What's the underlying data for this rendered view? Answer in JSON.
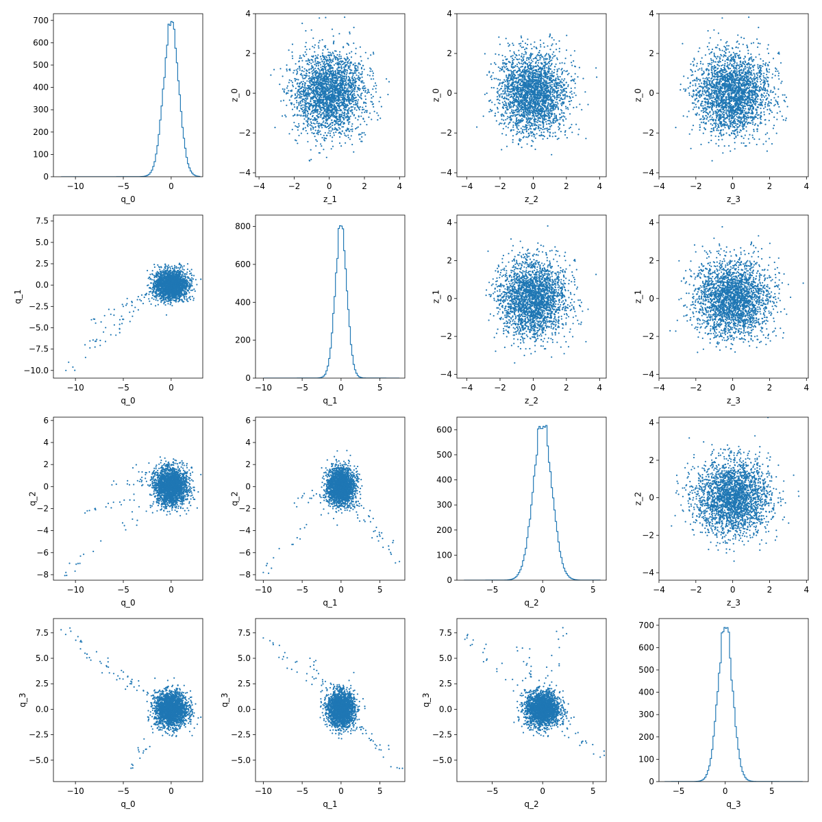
{
  "figure": {
    "type": "corner-pairplot",
    "point_color": "#1f77b4",
    "hist_color": "#1f77b4",
    "background": "#ffffff"
  },
  "chart_data": [
    {
      "type": "histogram",
      "row": 0,
      "col": 0,
      "xlabel": "q_0",
      "ylabel": "",
      "xlim": [
        -12.3,
        3.3
      ],
      "ylim": [
        0,
        730
      ],
      "xticks": [
        -10,
        -5,
        0
      ],
      "yticks": [
        0,
        100,
        200,
        300,
        400,
        500,
        600,
        700
      ],
      "distribution": {
        "center": 0,
        "spread": 0.8,
        "peak": 695,
        "tail_left": -11.5,
        "tail_right": 3
      }
    },
    {
      "type": "scatter",
      "row": 0,
      "col": 1,
      "xlabel": "z_1",
      "ylabel": "z_0",
      "xlim": [
        -4.2,
        4.3
      ],
      "ylim": [
        -4.2,
        4.0
      ],
      "xticks": [
        -4,
        -2,
        0,
        2,
        4
      ],
      "yticks": [
        -4,
        -2,
        0,
        2,
        4
      ],
      "distribution": {
        "shape": "gaussian",
        "sx": 1,
        "sy": 1,
        "n": 2600
      }
    },
    {
      "type": "scatter",
      "row": 0,
      "col": 2,
      "xlabel": "z_2",
      "ylabel": "z_0",
      "xlim": [
        -4.6,
        4.4
      ],
      "ylim": [
        -4.2,
        4.0
      ],
      "xticks": [
        -4,
        -2,
        0,
        2,
        4
      ],
      "yticks": [
        -4,
        -2,
        0,
        2,
        4
      ],
      "distribution": {
        "shape": "gaussian",
        "sx": 1,
        "sy": 1,
        "n": 2600
      }
    },
    {
      "type": "scatter",
      "row": 0,
      "col": 3,
      "xlabel": "z_3",
      "ylabel": "z_0",
      "xlim": [
        -4.0,
        4.1
      ],
      "ylim": [
        -4.2,
        4.0
      ],
      "xticks": [
        -4,
        -2,
        0,
        2,
        4
      ],
      "yticks": [
        -4,
        -2,
        0,
        2,
        4
      ],
      "distribution": {
        "shape": "gaussian",
        "sx": 1,
        "sy": 1,
        "n": 2600
      }
    },
    {
      "type": "scatter",
      "row": 1,
      "col": 0,
      "xlabel": "q_0",
      "ylabel": "q_1",
      "xlim": [
        -12.3,
        3.3
      ],
      "ylim": [
        -10.9,
        8.2
      ],
      "xticks": [
        -10,
        -5,
        0
      ],
      "yticks": [
        -10.0,
        -7.5,
        -5.0,
        -2.5,
        0.0,
        2.5,
        5.0,
        7.5
      ],
      "distribution": {
        "shape": "heavy-tail",
        "sx": 0.9,
        "sy": 0.9,
        "n": 2200,
        "tail": [
          [
            -11,
            -10
          ],
          [
            -9,
            -7
          ],
          [
            -8,
            -4
          ],
          [
            -5,
            -2.5
          ]
        ]
      }
    },
    {
      "type": "histogram",
      "row": 1,
      "col": 1,
      "xlabel": "q_1",
      "ylabel": "",
      "xlim": [
        -11,
        8.2
      ],
      "ylim": [
        0,
        860
      ],
      "xticks": [
        -10,
        -5,
        0,
        5
      ],
      "yticks": [
        0,
        200,
        400,
        600,
        800
      ],
      "distribution": {
        "center": 0,
        "spread": 0.75,
        "peak": 815,
        "tail_left": -10,
        "tail_right": 7.5
      }
    },
    {
      "type": "scatter",
      "row": 1,
      "col": 2,
      "xlabel": "z_2",
      "ylabel": "z_1",
      "xlim": [
        -4.6,
        4.4
      ],
      "ylim": [
        -4.2,
        4.4
      ],
      "xticks": [
        -4,
        -2,
        0,
        2,
        4
      ],
      "yticks": [
        -4,
        -2,
        0,
        2,
        4
      ],
      "distribution": {
        "shape": "gaussian",
        "sx": 1,
        "sy": 1,
        "n": 2600
      }
    },
    {
      "type": "scatter",
      "row": 1,
      "col": 3,
      "xlabel": "z_3",
      "ylabel": "z_1",
      "xlim": [
        -4.0,
        4.1
      ],
      "ylim": [
        -4.2,
        4.4
      ],
      "xticks": [
        -4,
        -2,
        0,
        2,
        4
      ],
      "yticks": [
        -4,
        -2,
        0,
        2,
        4
      ],
      "distribution": {
        "shape": "gaussian",
        "sx": 1,
        "sy": 1,
        "n": 2600
      }
    },
    {
      "type": "scatter",
      "row": 2,
      "col": 0,
      "xlabel": "q_0",
      "ylabel": "q_2",
      "xlim": [
        -12.3,
        3.3
      ],
      "ylim": [
        -8.5,
        6.3
      ],
      "xticks": [
        -10,
        -5,
        0
      ],
      "yticks": [
        -8,
        -6,
        -4,
        -2,
        0,
        2,
        4,
        6
      ],
      "distribution": {
        "shape": "heavy-tail",
        "sx": 0.9,
        "sy": 0.9,
        "n": 2200,
        "tail": [
          [
            -11,
            -7.8
          ],
          [
            -9,
            -2.4
          ],
          [
            -6,
            0.5
          ],
          [
            -4,
            1.7
          ]
        ]
      }
    },
    {
      "type": "scatter",
      "row": 2,
      "col": 1,
      "xlabel": "q_1",
      "ylabel": "q_2",
      "xlim": [
        -11,
        8.2
      ],
      "ylim": [
        -8.5,
        6.3
      ],
      "xticks": [
        -10,
        -5,
        0,
        5
      ],
      "yticks": [
        -8,
        -6,
        -4,
        -2,
        0,
        2,
        4,
        6
      ],
      "distribution": {
        "shape": "heavy-tail",
        "sx": 0.9,
        "sy": 0.9,
        "n": 2200,
        "tail": [
          [
            -10,
            -7.8
          ],
          [
            -6,
            -1.5
          ],
          [
            5,
            -4.5
          ],
          [
            7.5,
            -6.8
          ]
        ]
      }
    },
    {
      "type": "histogram",
      "row": 2,
      "col": 2,
      "xlabel": "q_2",
      "ylabel": "",
      "xlim": [
        -8.5,
        6.3
      ],
      "ylim": [
        0,
        650
      ],
      "xticks": [
        -5,
        0,
        5
      ],
      "yticks": [
        0,
        100,
        200,
        300,
        400,
        500,
        600
      ],
      "distribution": {
        "center": 0,
        "spread": 0.95,
        "peak": 620,
        "tail_left": -7.8,
        "tail_right": 5.7
      }
    },
    {
      "type": "scatter",
      "row": 2,
      "col": 3,
      "xlabel": "z_3",
      "ylabel": "z_2",
      "xlim": [
        -4.0,
        4.1
      ],
      "ylim": [
        -4.4,
        4.3
      ],
      "xticks": [
        -4,
        -2,
        0,
        2,
        4
      ],
      "yticks": [
        -4,
        -2,
        0,
        2,
        4
      ],
      "distribution": {
        "shape": "gaussian",
        "sx": 1,
        "sy": 1,
        "n": 2600
      }
    },
    {
      "type": "scatter",
      "row": 3,
      "col": 0,
      "xlabel": "q_0",
      "ylabel": "q_3",
      "xlim": [
        -12.3,
        3.3
      ],
      "ylim": [
        -7.1,
        8.9
      ],
      "xticks": [
        -10,
        -5,
        0
      ],
      "yticks": [
        -5.0,
        -2.5,
        0.0,
        2.5,
        5.0,
        7.5
      ],
      "distribution": {
        "shape": "heavy-tail",
        "sx": 0.9,
        "sy": 0.9,
        "n": 2200,
        "tail": [
          [
            -11.5,
            7.8
          ],
          [
            -9,
            5.5
          ],
          [
            -6,
            3.5
          ],
          [
            -4,
            -5.5
          ]
        ]
      }
    },
    {
      "type": "scatter",
      "row": 3,
      "col": 1,
      "xlabel": "q_1",
      "ylabel": "q_3",
      "xlim": [
        -11,
        8.2
      ],
      "ylim": [
        -7.1,
        8.9
      ],
      "xticks": [
        -10,
        -5,
        0,
        5
      ],
      "yticks": [
        -5.0,
        -2.5,
        0.0,
        2.5,
        5.0,
        7.5
      ],
      "distribution": {
        "shape": "heavy-tail",
        "sx": 0.9,
        "sy": 0.9,
        "n": 2200,
        "tail": [
          [
            -10,
            7
          ],
          [
            -4,
            5
          ],
          [
            5,
            -3.5
          ],
          [
            7.5,
            -5.8
          ]
        ]
      }
    },
    {
      "type": "scatter",
      "row": 3,
      "col": 2,
      "xlabel": "q_2",
      "ylabel": "q_3",
      "xlim": [
        -8.5,
        6.3
      ],
      "ylim": [
        -7.1,
        8.9
      ],
      "xticks": [
        -5,
        0,
        5
      ],
      "yticks": [
        -5.0,
        -2.5,
        0.0,
        2.5,
        5.0,
        7.5
      ],
      "distribution": {
        "shape": "heavy-tail",
        "sx": 0.9,
        "sy": 0.9,
        "n": 2200,
        "tail": [
          [
            -7.5,
            7
          ],
          [
            -2,
            6
          ],
          [
            2,
            8
          ],
          [
            5.7,
            -4.7
          ]
        ]
      }
    },
    {
      "type": "histogram",
      "row": 3,
      "col": 3,
      "xlabel": "q_3",
      "ylabel": "",
      "xlim": [
        -7.1,
        8.9
      ],
      "ylim": [
        0,
        730
      ],
      "xticks": [
        -5,
        0,
        5
      ],
      "yticks": [
        0,
        100,
        200,
        300,
        400,
        500,
        600,
        700
      ],
      "distribution": {
        "center": 0,
        "spread": 0.8,
        "peak": 695,
        "tail_left": -6.5,
        "tail_right": 8.3
      }
    }
  ]
}
